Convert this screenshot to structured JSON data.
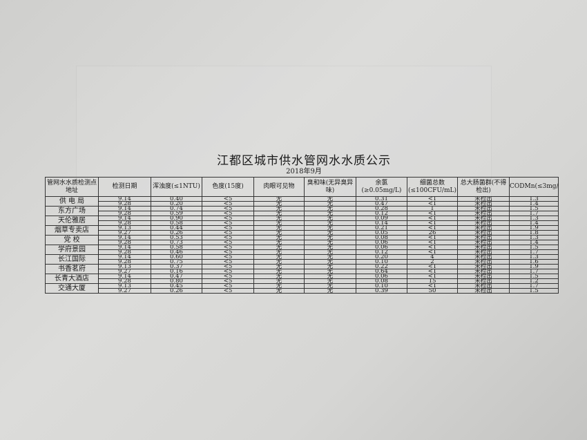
{
  "title": "江都区城市供水管网水水质公示",
  "subtitle": "2018年9月",
  "headers": [
    "管网水水质检测点地址",
    "检测日期",
    "浑浊度(≤1NTU)",
    "色度(15度)",
    "肉眼可见物",
    "臭和味(无异臭异味)",
    "余氯(≥0.05mg/L)",
    "细菌总数(≤100CFU/mL)",
    "总大肠菌群(不得检出)",
    "CODMn(≤3mg/L)"
  ],
  "locations": [
    {
      "name": "供 电 局",
      "rows": [
        [
          "9.14",
          "0.40",
          "<5",
          "无",
          "无",
          "0.31",
          "<1",
          "未检出",
          "1.3"
        ],
        [
          "9.28",
          "0.20",
          "<5",
          "无",
          "无",
          "0.47",
          "<1",
          "未检出",
          "1.4"
        ]
      ]
    },
    {
      "name": "东方广场",
      "rows": [
        [
          "9.14",
          "0.74",
          "<5",
          "无",
          "无",
          "0.28",
          "1",
          "未检出",
          "1.5"
        ],
        [
          "9.28",
          "0.59",
          "<5",
          "无",
          "无",
          "0.12",
          "<1",
          "未检出",
          "1.7"
        ]
      ]
    },
    {
      "name": "天伦雅居",
      "rows": [
        [
          "9.14",
          "0.90",
          "<5",
          "无",
          "无",
          "0.09",
          "<1",
          "未检出",
          "1.3"
        ],
        [
          "9.28",
          "0.58",
          "<5",
          "无",
          "无",
          "0.14",
          "<1",
          "未检出",
          "1.4"
        ]
      ]
    },
    {
      "name": "烟草专卖店",
      "rows": [
        [
          "9.13",
          "0.44",
          "<5",
          "无",
          "无",
          "0.21",
          "<1",
          "未检出",
          "1.9"
        ],
        [
          "9.27",
          "0.26",
          "<5",
          "无",
          "无",
          "0.05",
          "26",
          "未检出",
          "1.8"
        ]
      ]
    },
    {
      "name": "党  校",
      "rows": [
        [
          "9.14",
          "0.53",
          "<5",
          "无",
          "无",
          "0.08",
          "<1",
          "未检出",
          "1.3"
        ],
        [
          "9.28",
          "0.73",
          "<5",
          "无",
          "无",
          "0.06",
          "<1",
          "未检出",
          "1.4"
        ]
      ]
    },
    {
      "name": "学府景园",
      "rows": [
        [
          "9.14",
          "0.58",
          "<5",
          "无",
          "无",
          "0.06",
          "<1",
          "未检出",
          "1.5"
        ],
        [
          "9.28",
          "0.46",
          "<5",
          "无",
          "无",
          "0.12",
          "<1",
          "未检出",
          "1.7"
        ]
      ]
    },
    {
      "name": "长江国际",
      "rows": [
        [
          "9.14",
          "0.60",
          "<5",
          "无",
          "无",
          "0.20",
          "4",
          "未检出",
          "1.3"
        ],
        [
          "9.28",
          "0.75",
          "<5",
          "无",
          "无",
          "0.10",
          "2",
          "未检出",
          "1.6"
        ]
      ]
    },
    {
      "name": "书香茗府",
      "rows": [
        [
          "9.13",
          "0.37",
          "<5",
          "无",
          "无",
          "0.22",
          "<1",
          "未检出",
          "1.9"
        ],
        [
          "9.27",
          "0.16",
          "<5",
          "无",
          "无",
          "0.64",
          "<1",
          "未检出",
          "1.7"
        ]
      ]
    },
    {
      "name": "长青大酒店",
      "rows": [
        [
          "9.14",
          "0.47",
          "<5",
          "无",
          "无",
          "0.06",
          "<1",
          "未检出",
          "1.5"
        ],
        [
          "9.28",
          "0.80",
          "<5",
          "无",
          "无",
          "0.08",
          "15",
          "未检出",
          "1.2"
        ]
      ]
    },
    {
      "name": "交通大厦",
      "rows": [
        [
          "9.13",
          "0.45",
          "<5",
          "无",
          "无",
          "0.10",
          "<1",
          "未检出",
          "1.7"
        ],
        [
          "9.27",
          "0.26",
          "<5",
          "无",
          "无",
          "0.39",
          "50",
          "未检出",
          "1.5"
        ]
      ]
    }
  ]
}
